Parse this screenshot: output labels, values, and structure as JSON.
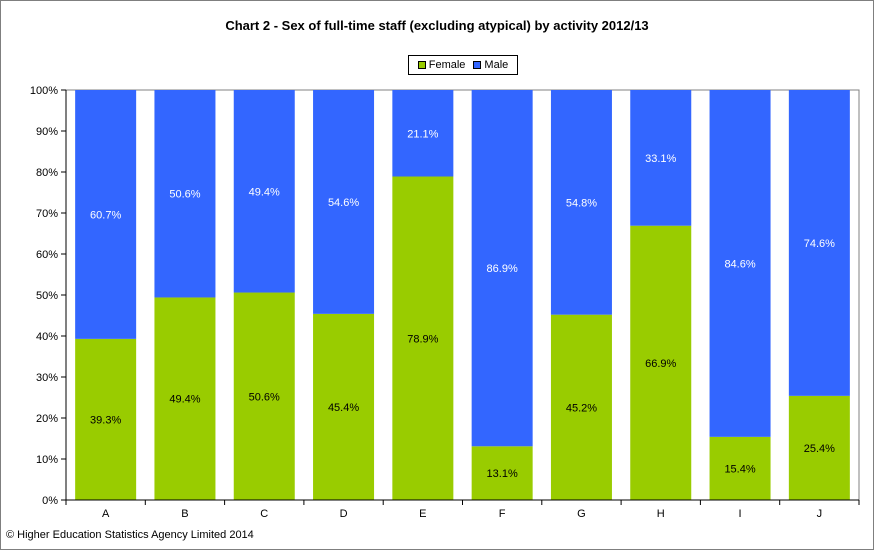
{
  "chart_data": {
    "type": "bar",
    "stacked": true,
    "title": "Chart 2 - Sex of full-time staff (excluding atypical) by activity 2012/13",
    "categories": [
      "A",
      "B",
      "C",
      "D",
      "E",
      "F",
      "G",
      "H",
      "I",
      "J"
    ],
    "series": [
      {
        "name": "Female",
        "color": "#99cc00",
        "values": [
          39.3,
          49.4,
          50.6,
          45.4,
          78.9,
          13.1,
          45.2,
          66.9,
          15.4,
          25.4
        ],
        "labels": [
          "39.3%",
          "49.4%",
          "50.6%",
          "45.4%",
          "78.9%",
          "13.1%",
          "45.2%",
          "66.9%",
          "15.4%",
          "25.4%"
        ]
      },
      {
        "name": "Male",
        "color": "#3366ff",
        "values": [
          60.7,
          50.6,
          49.4,
          54.6,
          21.1,
          86.9,
          54.8,
          33.1,
          84.6,
          74.6
        ],
        "labels": [
          "60.7%",
          "50.6%",
          "49.4%",
          "54.6%",
          "21.1%",
          "86.9%",
          "54.8%",
          "33.1%",
          "84.6%",
          "74.6%"
        ]
      }
    ],
    "ylim": [
      0,
      100
    ],
    "yticks": [
      "0%",
      "10%",
      "20%",
      "30%",
      "40%",
      "50%",
      "60%",
      "70%",
      "80%",
      "90%",
      "100%"
    ],
    "grid": false,
    "legend": "top-center"
  },
  "footer": {
    "copyright": "© Higher Education Statistics Agency Limited 2014"
  }
}
